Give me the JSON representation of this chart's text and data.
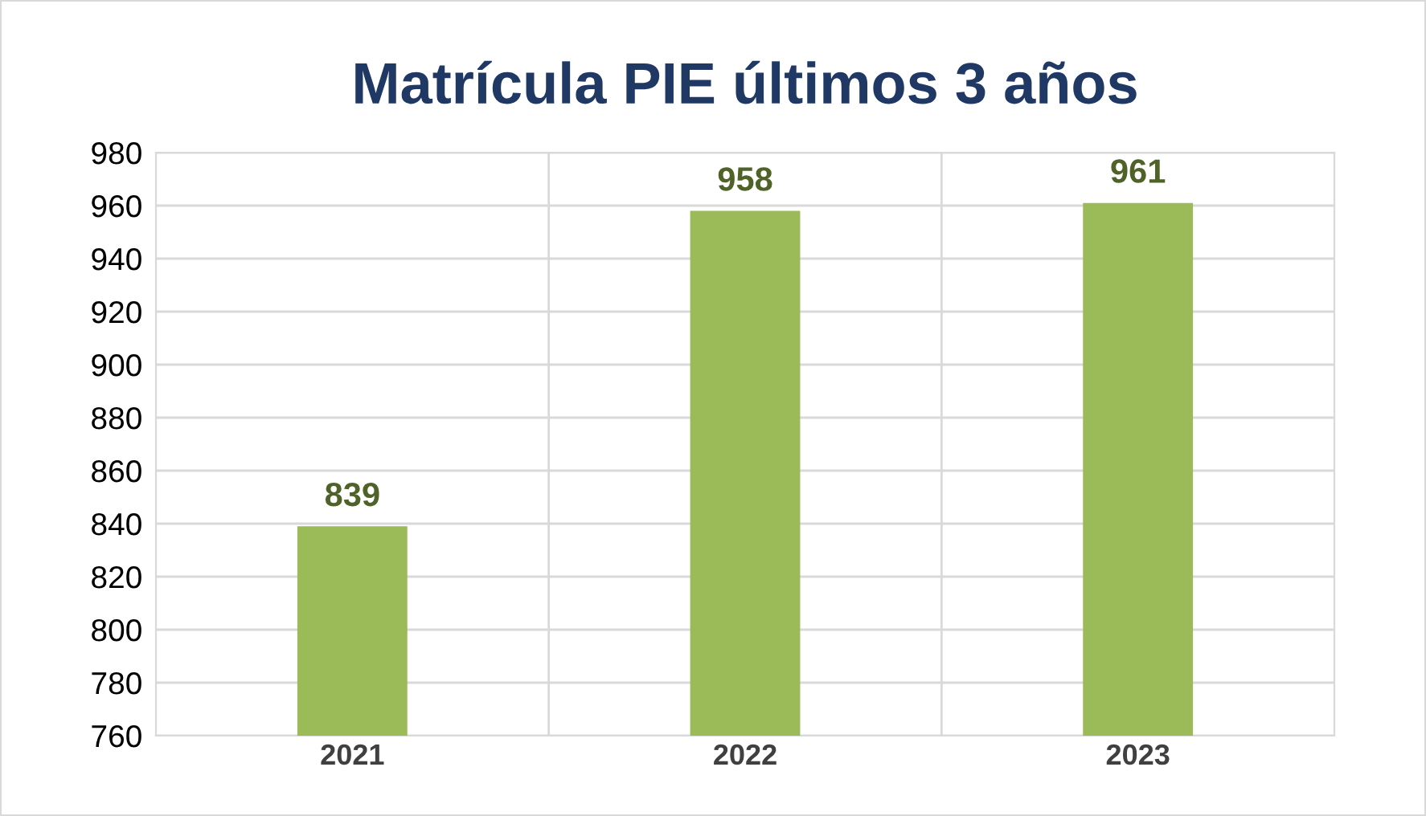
{
  "chart_data": {
    "type": "bar",
    "title": "Matrícula PIE últimos 3 años",
    "categories": [
      "2021",
      "2022",
      "2023"
    ],
    "values": [
      839,
      958,
      961
    ],
    "color": "#9bbb59",
    "ylim": [
      760,
      980
    ],
    "yticks": [
      760,
      780,
      800,
      820,
      840,
      860,
      880,
      900,
      920,
      940,
      960,
      980
    ],
    "grid": true,
    "data_labels": true
  }
}
